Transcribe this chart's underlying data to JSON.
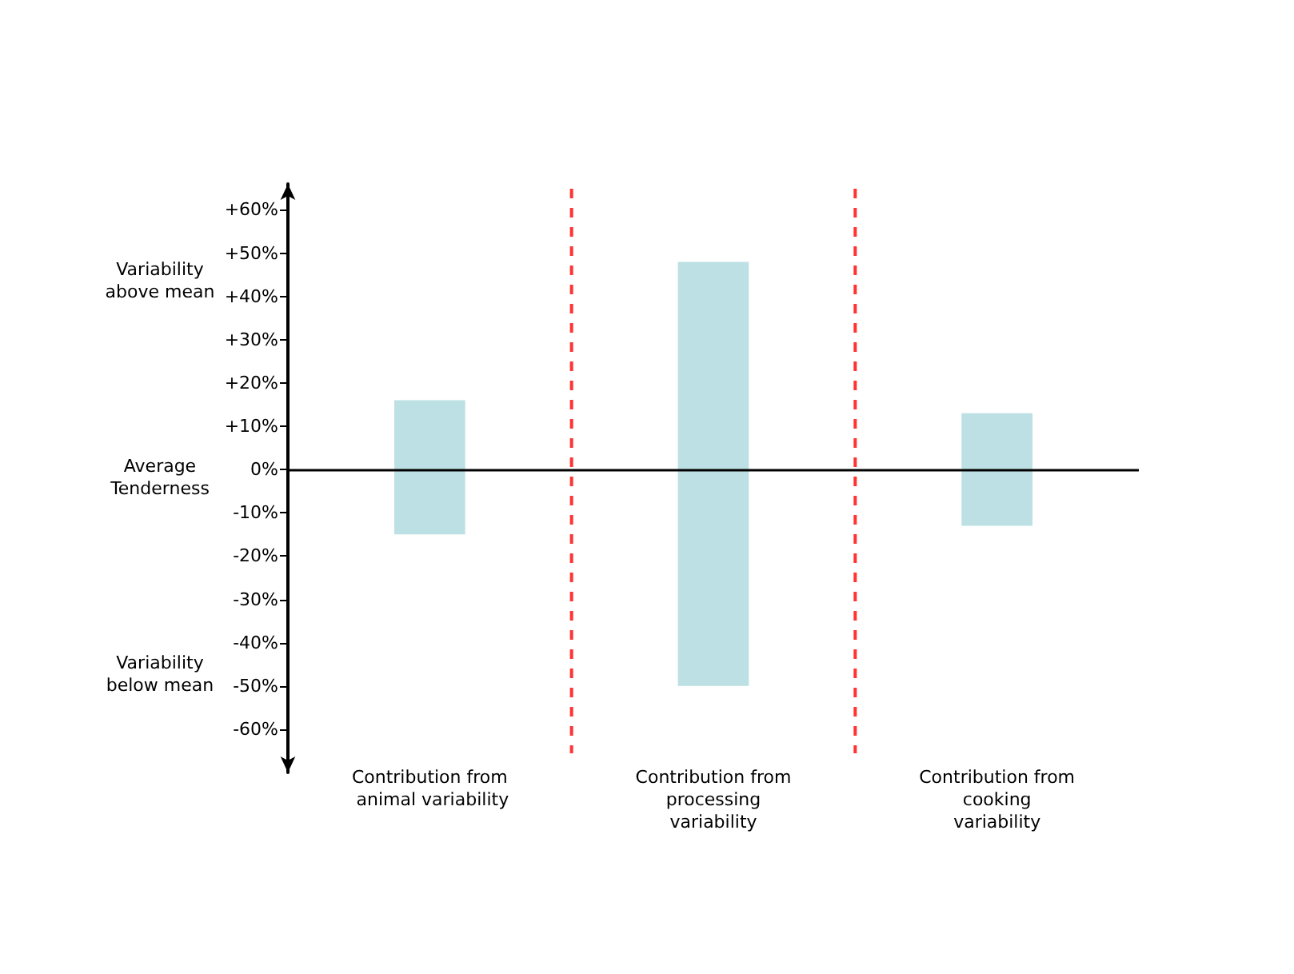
{
  "chart_data": {
    "type": "bar",
    "categories": [
      "Contribution from animal variability",
      "Contribution from processing variability",
      "Contribution from cooking variability"
    ],
    "base": [
      -15,
      -50,
      -13
    ],
    "values": [
      31,
      98,
      26
    ],
    "color": "#bce0e3",
    "ylim": [
      -70,
      66
    ],
    "yticks": [
      {
        "value": -60,
        "label": "-60%"
      },
      {
        "value": -50,
        "label": "-50%"
      },
      {
        "value": -40,
        "label": "-40%"
      },
      {
        "value": -30,
        "label": "-30%"
      },
      {
        "value": -20,
        "label": "-20%"
      },
      {
        "value": -10,
        "label": "-10%"
      },
      {
        "value": 0,
        "label": "0%"
      },
      {
        "value": 10,
        "label": "+10%"
      },
      {
        "value": 20,
        "label": "+20%"
      },
      {
        "value": 30,
        "label": "+30%"
      },
      {
        "value": 40,
        "label": "+40%"
      },
      {
        "value": 50,
        "label": "+50%"
      },
      {
        "value": 60,
        "label": "+60%"
      }
    ],
    "annotations": [
      "Variability above mean",
      "Average Tenderness",
      "Variability below mean"
    ],
    "ref_lines": [
      {
        "axis": "y",
        "value": 0,
        "color": "#000000",
        "line_style": "solid"
      }
    ],
    "grid": false
  }
}
